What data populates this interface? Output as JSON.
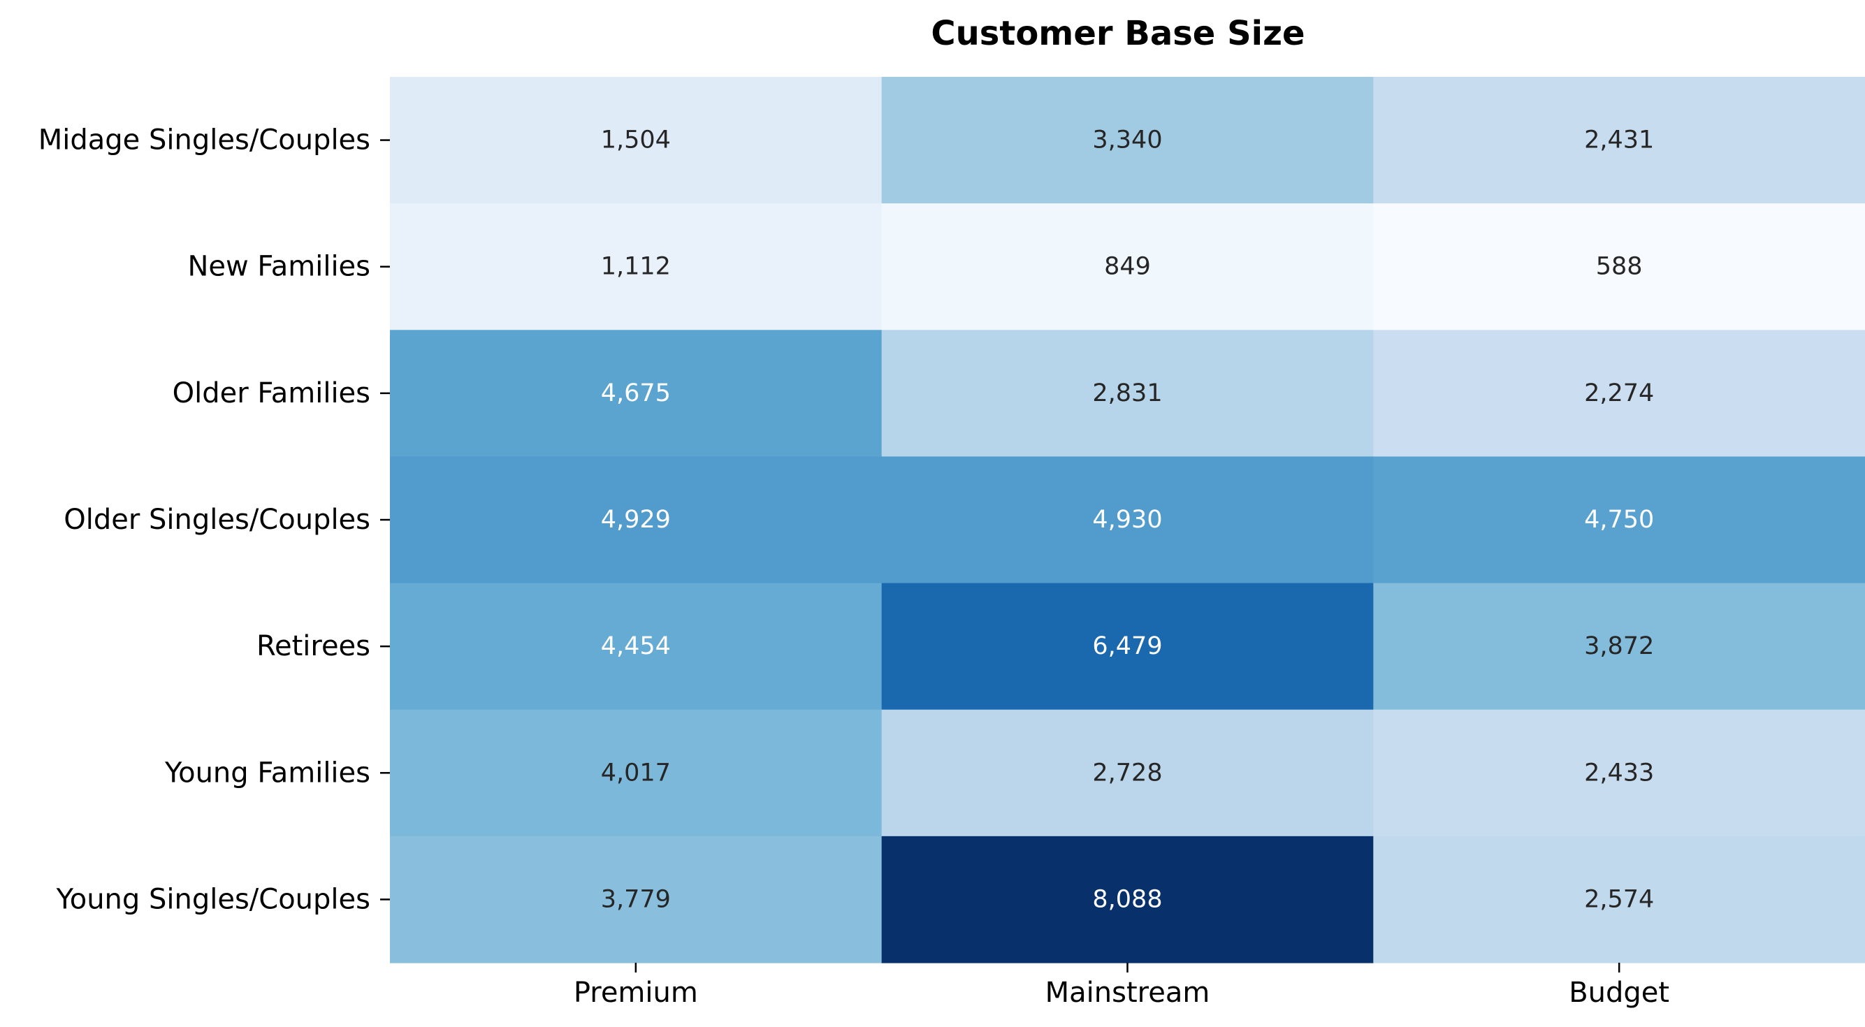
{
  "chart_data": {
    "type": "heatmap",
    "title": "Customer Base Size",
    "xlabel": "",
    "ylabel": "",
    "columns": [
      "Premium",
      "Mainstream",
      "Budget"
    ],
    "rows": [
      "Midage Singles/Couples",
      "New Families",
      "Older Families",
      "Older Singles/Couples",
      "Retirees",
      "Young Families",
      "Young Singles/Couples"
    ],
    "values": [
      [
        1504,
        3340,
        2431
      ],
      [
        1112,
        849,
        588
      ],
      [
        4675,
        2831,
        2274
      ],
      [
        4929,
        4930,
        4750
      ],
      [
        4454,
        6479,
        3872
      ],
      [
        4017,
        2728,
        2433
      ],
      [
        3779,
        8088,
        2574
      ]
    ],
    "value_labels": [
      [
        "1,504",
        "3,340",
        "2,431"
      ],
      [
        "1,112",
        "849",
        "588"
      ],
      [
        "4,675",
        "2,831",
        "2,274"
      ],
      [
        "4,929",
        "4,930",
        "4,750"
      ],
      [
        "4,454",
        "6,479",
        "3,872"
      ],
      [
        "4,017",
        "2,728",
        "2,433"
      ],
      [
        "3,779",
        "8,088",
        "2,574"
      ]
    ],
    "colormap": "Blues",
    "color_range": [
      588,
      8088
    ],
    "colorbar": false,
    "grid": false
  }
}
